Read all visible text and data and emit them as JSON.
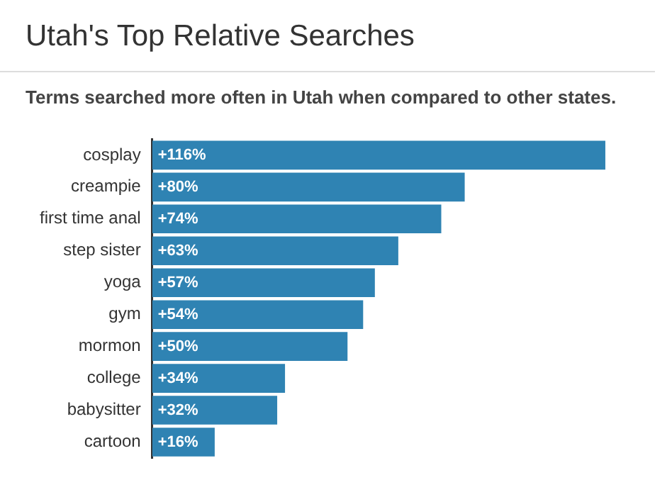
{
  "chart_data": {
    "type": "bar",
    "orientation": "horizontal",
    "title": "Utah's Top Relative Searches",
    "subtitle": "Terms searched more often in Utah when compared to other states.",
    "categories": [
      "cosplay",
      "creampie",
      "first time anal",
      "step sister",
      "yoga",
      "gym",
      "mormon",
      "college",
      "babysitter",
      "cartoon"
    ],
    "values": [
      116,
      80,
      74,
      63,
      57,
      54,
      50,
      34,
      32,
      16
    ],
    "value_labels": [
      "+116%",
      "+80%",
      "+74%",
      "+63%",
      "+57%",
      "+54%",
      "+50%",
      "+34%",
      "+32%",
      "+16%"
    ],
    "color": "#2f83b3"
  }
}
